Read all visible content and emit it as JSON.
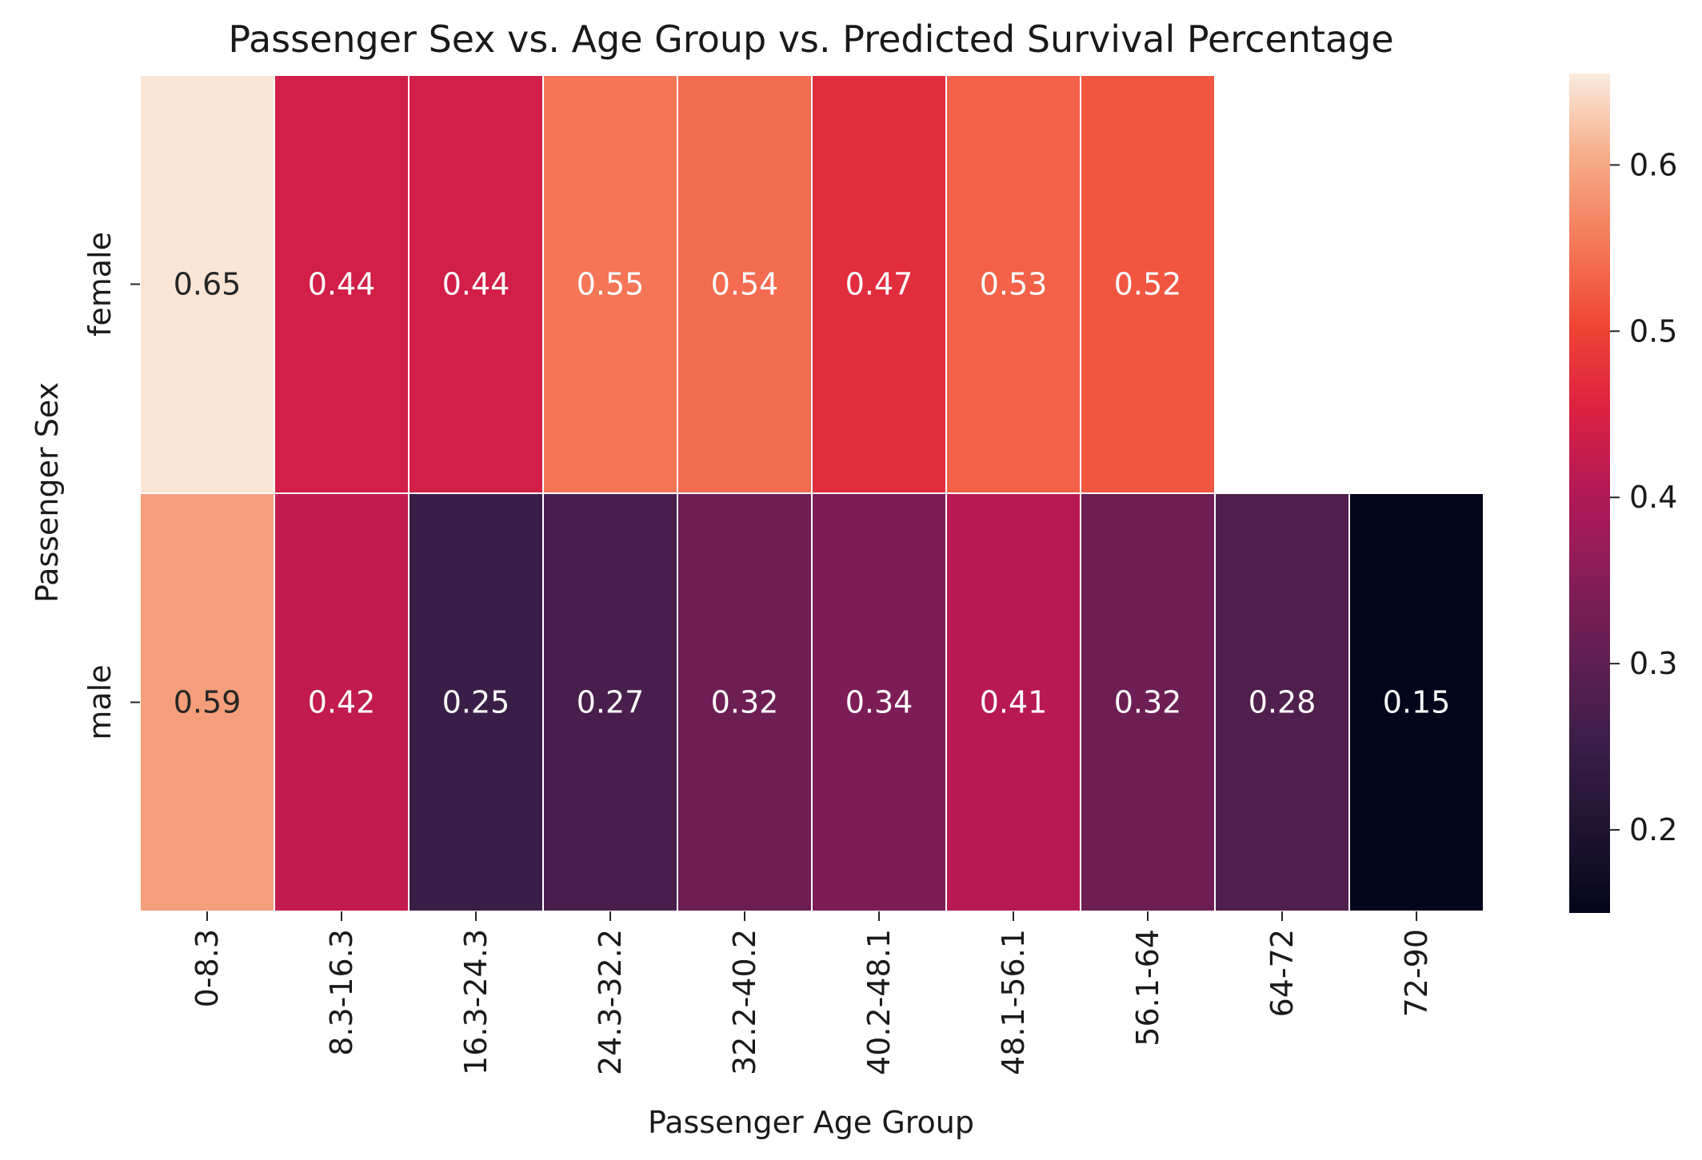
{
  "chart_data": {
    "type": "heatmap",
    "title": "Passenger Sex vs. Age Group vs. Predicted Survival Percentage",
    "xlabel": "Passenger Age Group",
    "ylabel": "Passenger Sex",
    "x_categories": [
      "0-8.3",
      "8.3-16.3",
      "16.3-24.3",
      "24.3-32.2",
      "32.2-40.2",
      "40.2-48.1",
      "48.1-56.1",
      "56.1-64",
      "64-72",
      "72-90"
    ],
    "y_categories": [
      "female",
      "male"
    ],
    "values": [
      [
        0.65,
        0.44,
        0.44,
        0.55,
        0.54,
        0.47,
        0.53,
        0.52,
        null,
        null
      ],
      [
        0.59,
        0.42,
        0.25,
        0.27,
        0.32,
        0.34,
        0.41,
        0.32,
        0.28,
        0.15
      ]
    ],
    "value_labels": [
      [
        "0.65",
        "0.44",
        "0.44",
        "0.55",
        "0.54",
        "0.47",
        "0.53",
        "0.52",
        "",
        ""
      ],
      [
        "0.59",
        "0.42",
        "0.25",
        "0.27",
        "0.32",
        "0.34",
        "0.41",
        "0.32",
        "0.28",
        "0.15"
      ]
    ],
    "colorbar": {
      "range": [
        0.15,
        0.655
      ],
      "ticks": [
        0.2,
        0.3,
        0.4,
        0.5,
        0.6
      ],
      "tick_labels": [
        "0.2",
        "0.3",
        "0.4",
        "0.5",
        "0.6"
      ],
      "colormap": "rocket"
    },
    "grid": false,
    "cell_border_color": "#ffffff"
  }
}
